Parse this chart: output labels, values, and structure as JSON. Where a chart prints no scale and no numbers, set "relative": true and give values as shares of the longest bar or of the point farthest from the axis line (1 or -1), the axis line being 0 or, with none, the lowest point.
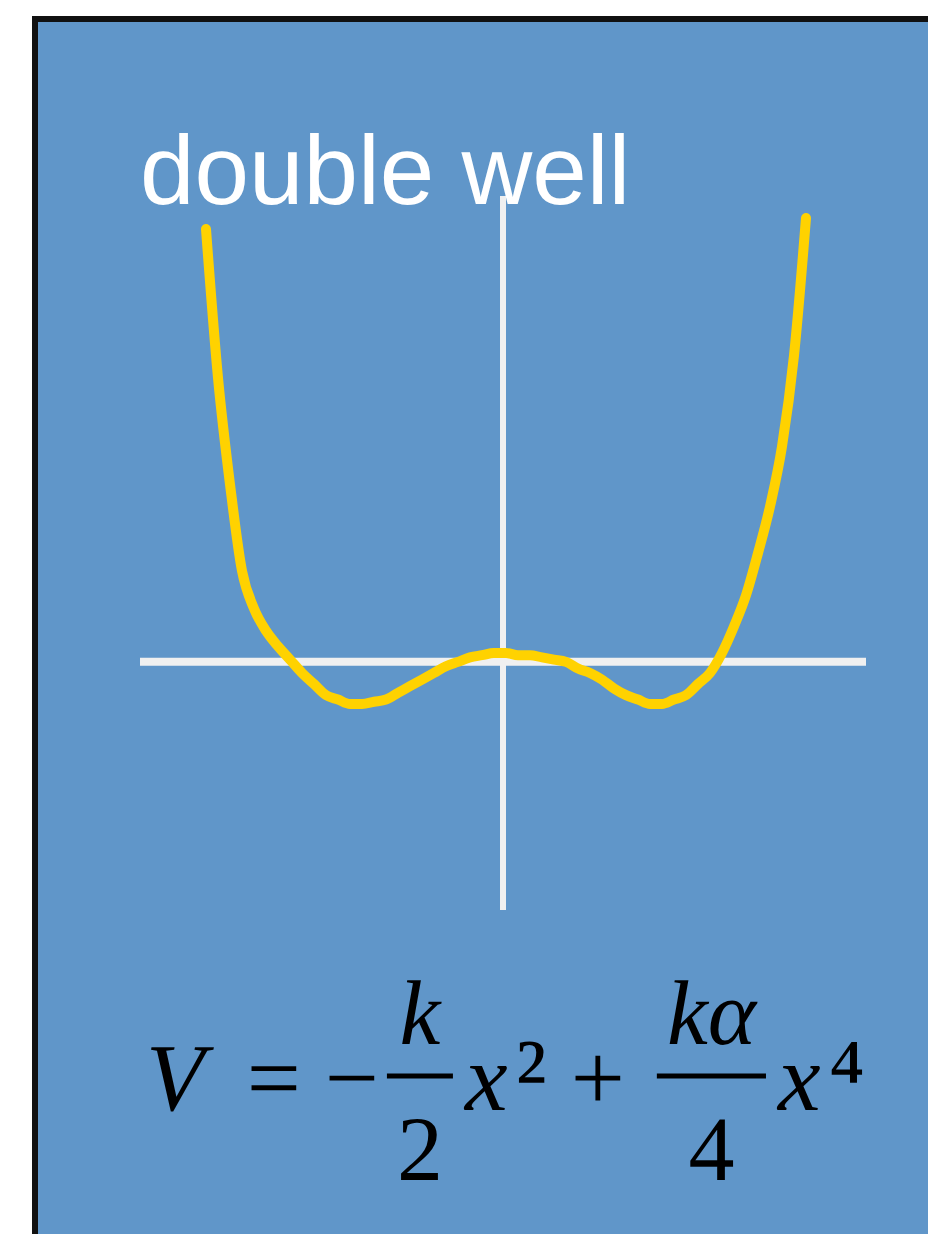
{
  "chart_data": {
    "type": "line",
    "title": "double well",
    "categories": [
      null,
      null,
      null,
      null,
      null,
      null,
      null,
      null,
      null,
      null,
      null,
      null,
      null,
      null,
      null,
      null,
      null,
      null,
      null,
      null,
      null,
      null,
      null,
      null,
      null,
      null,
      null,
      null,
      null,
      null,
      null,
      null,
      null,
      null,
      null,
      null,
      null,
      null,
      null,
      null,
      null,
      null,
      null,
      null,
      null,
      null,
      null,
      null,
      null,
      null,
      null
    ],
    "values": [
      0.975,
      0.64,
      0.4,
      0.205,
      0.12,
      0.07,
      0.035,
      0.005,
      -0.025,
      -0.05,
      -0.075,
      -0.085,
      -0.095,
      -0.095,
      -0.09,
      -0.085,
      -0.07,
      -0.055,
      -0.04,
      -0.025,
      -0.01,
      0,
      0.01,
      0.015,
      0.02,
      0.02,
      0.015,
      0.015,
      0.01,
      0.005,
      0,
      -0.015,
      -0.025,
      -0.04,
      -0.06,
      -0.075,
      -0.085,
      -0.095,
      -0.095,
      -0.085,
      -0.075,
      -0.05,
      -0.025,
      0.02,
      0.08,
      0.15,
      0.245,
      0.35,
      0.485,
      0.69,
      1
    ],
    "color": "#ffd200",
    "relative": true,
    "annotations": [
      "V = −$^{k}$$_{2}$x² + $^{kα}$$_{4}$x⁴"
    ]
  }
}
